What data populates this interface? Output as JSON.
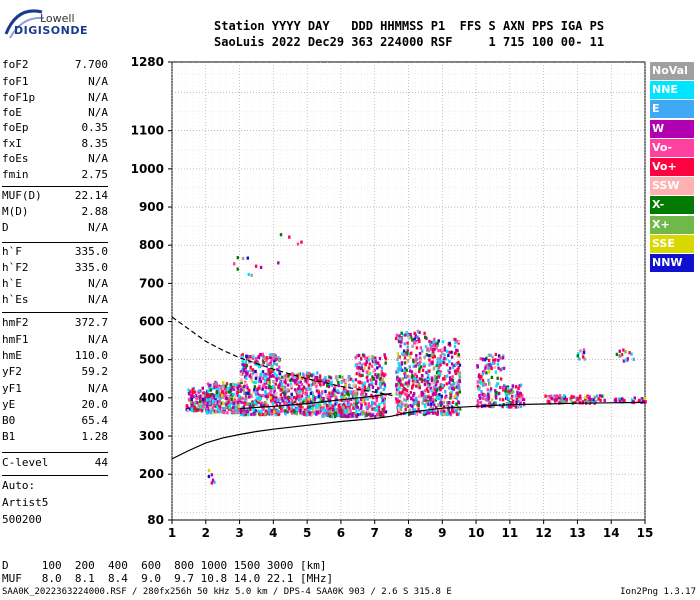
{
  "logo": {
    "brand_top": "Lowell",
    "brand_bottom": "DIGISONDE"
  },
  "header": {
    "line1": "Station YYYY DAY   DDD HHMMSS P1  FFS S AXN PPS IGA PS",
    "line2": "SaoLuis 2022 Dec29 363 224000 RSF     1 715 100 00- 11"
  },
  "params": [
    {
      "label": "foF2",
      "value": "7.700"
    },
    {
      "label": "foF1",
      "value": "N/A"
    },
    {
      "label": "foF1p",
      "value": "N/A"
    },
    {
      "label": "foE",
      "value": "N/A"
    },
    {
      "label": "foEp",
      "value": "0.35"
    },
    {
      "label": "fxI",
      "value": "8.35"
    },
    {
      "label": "foEs",
      "value": "N/A"
    },
    {
      "label": "fmin",
      "value": "2.75"
    },
    {
      "label": "MUF(D)",
      "value": "22.14"
    },
    {
      "label": "M(D)",
      "value": "2.88"
    },
    {
      "label": "D",
      "value": "N/A"
    },
    {
      "label": "h`F",
      "value": "335.0"
    },
    {
      "label": "h`F2",
      "value": "335.0"
    },
    {
      "label": "h`E",
      "value": "N/A"
    },
    {
      "label": "h`Es",
      "value": "N/A"
    },
    {
      "label": "hmF2",
      "value": "372.7"
    },
    {
      "label": "hmF1",
      "value": "N/A"
    },
    {
      "label": "hmE",
      "value": "110.0"
    },
    {
      "label": "yF2",
      "value": "59.2"
    },
    {
      "label": "yF1",
      "value": "N/A"
    },
    {
      "label": "yE",
      "value": "20.0"
    },
    {
      "label": "B0",
      "value": "65.4"
    },
    {
      "label": "B1",
      "value": "1.28"
    },
    {
      "label": "C-level",
      "value": "44"
    }
  ],
  "autoscaling": {
    "line1": "Auto:",
    "line2": "Artist5",
    "line3": "500200"
  },
  "muf_table": {
    "d_row": "D     100  200  400  600  800 1000 1500 3000 [km]",
    "muf_row": "MUF   8.0  8.1  8.4  9.0  9.7 10.8 14.0 22.1 [MHz]"
  },
  "footer": {
    "left": "SAA0K_2022363224000.RSF / 280fx256h 50 kHz 5.0 km / DPS-4 SAA0K 903 / 2.6 S 315.8 E",
    "right": "Ion2Png 1.3.17"
  },
  "legend": [
    {
      "label": "NoVal",
      "color": "#a0a0a0"
    },
    {
      "label": "NNE",
      "color": "#00e5ff"
    },
    {
      "label": "E",
      "color": "#3fa9f5"
    },
    {
      "label": "W",
      "color": "#b000b0"
    },
    {
      "label": "Vo-",
      "color": "#ff40a0"
    },
    {
      "label": "Vo+",
      "color": "#ff0040"
    },
    {
      "label": "SSW",
      "color": "#ffb0b0"
    },
    {
      "label": "X-",
      "color": "#007a00"
    },
    {
      "label": "X+",
      "color": "#70b84a"
    },
    {
      "label": "SSE",
      "color": "#d8d800"
    },
    {
      "label": "NNW",
      "color": "#1010d0"
    }
  ],
  "chart_data": {
    "type": "scatter",
    "xlabel": "",
    "ylabel": "",
    "xlim": [
      1,
      15
    ],
    "ylim": [
      80,
      1280
    ],
    "x_ticks": [
      1,
      2,
      3,
      4,
      5,
      6,
      7,
      8,
      9,
      10,
      11,
      12,
      13,
      14,
      15
    ],
    "y_ticks": [
      80,
      200,
      300,
      400,
      500,
      600,
      700,
      800,
      900,
      1000,
      1100,
      1280
    ],
    "grid": true,
    "clusters": [
      {
        "x0": 1.4,
        "x1": 2.0,
        "y0": 370,
        "y1": 430,
        "n": 120
      },
      {
        "x0": 2.0,
        "x1": 3.0,
        "y0": 365,
        "y1": 445,
        "n": 260
      },
      {
        "x0": 3.0,
        "x1": 4.2,
        "y0": 360,
        "y1": 520,
        "n": 420
      },
      {
        "x0": 4.2,
        "x1": 5.4,
        "y0": 360,
        "y1": 470,
        "n": 320
      },
      {
        "x0": 5.4,
        "x1": 6.4,
        "y0": 355,
        "y1": 460,
        "n": 260
      },
      {
        "x0": 6.4,
        "x1": 7.3,
        "y0": 355,
        "y1": 520,
        "n": 240
      },
      {
        "x0": 7.6,
        "x1": 8.6,
        "y0": 360,
        "y1": 580,
        "n": 320
      },
      {
        "x0": 8.6,
        "x1": 9.5,
        "y0": 360,
        "y1": 560,
        "n": 300
      },
      {
        "x0": 10.0,
        "x1": 10.8,
        "y0": 380,
        "y1": 520,
        "n": 140
      },
      {
        "x0": 10.8,
        "x1": 11.4,
        "y0": 380,
        "y1": 440,
        "n": 70
      },
      {
        "x0": 12.0,
        "x1": 12.8,
        "y0": 390,
        "y1": 410,
        "n": 45
      },
      {
        "x0": 12.8,
        "x1": 13.8,
        "y0": 390,
        "y1": 410,
        "n": 40
      },
      {
        "x0": 14.0,
        "x1": 15.0,
        "y0": 392,
        "y1": 404,
        "n": 30
      },
      {
        "x0": 12.9,
        "x1": 13.2,
        "y0": 500,
        "y1": 530,
        "n": 10
      },
      {
        "x0": 14.1,
        "x1": 14.7,
        "y0": 500,
        "y1": 530,
        "n": 14
      },
      {
        "x0": 2.8,
        "x1": 4.8,
        "y0": 720,
        "y1": 840,
        "n": 14
      },
      {
        "x0": 2.0,
        "x1": 2.3,
        "y0": 180,
        "y1": 260,
        "n": 6
      }
    ],
    "curves": [
      {
        "name": "",
        "style": "solid",
        "x": [
          1.0,
          1.5,
          2.0,
          2.5,
          3.0,
          3.5,
          4.0,
          5.0,
          6.0,
          7.0,
          7.5,
          8.0,
          9.0,
          10.0,
          11.0,
          12.0,
          13.0,
          14.0,
          15.0
        ],
        "y": [
          240,
          262,
          282,
          295,
          304,
          312,
          318,
          328,
          338,
          346,
          352,
          362,
          373,
          378,
          382,
          384,
          386,
          387,
          388
        ]
      },
      {
        "name": "",
        "style": "solid",
        "x": [
          3.0,
          4.0,
          5.0,
          6.0,
          7.0,
          7.5
        ],
        "y": [
          372,
          378,
          385,
          395,
          405,
          412
        ]
      },
      {
        "name": "",
        "style": "dashed",
        "x": [
          1.0,
          1.5,
          2.0,
          2.5,
          3.0,
          3.5,
          4.0,
          5.0,
          6.0,
          7.0,
          7.6
        ],
        "y": [
          612,
          580,
          548,
          525,
          505,
          490,
          475,
          450,
          430,
          415,
          405
        ]
      }
    ]
  }
}
